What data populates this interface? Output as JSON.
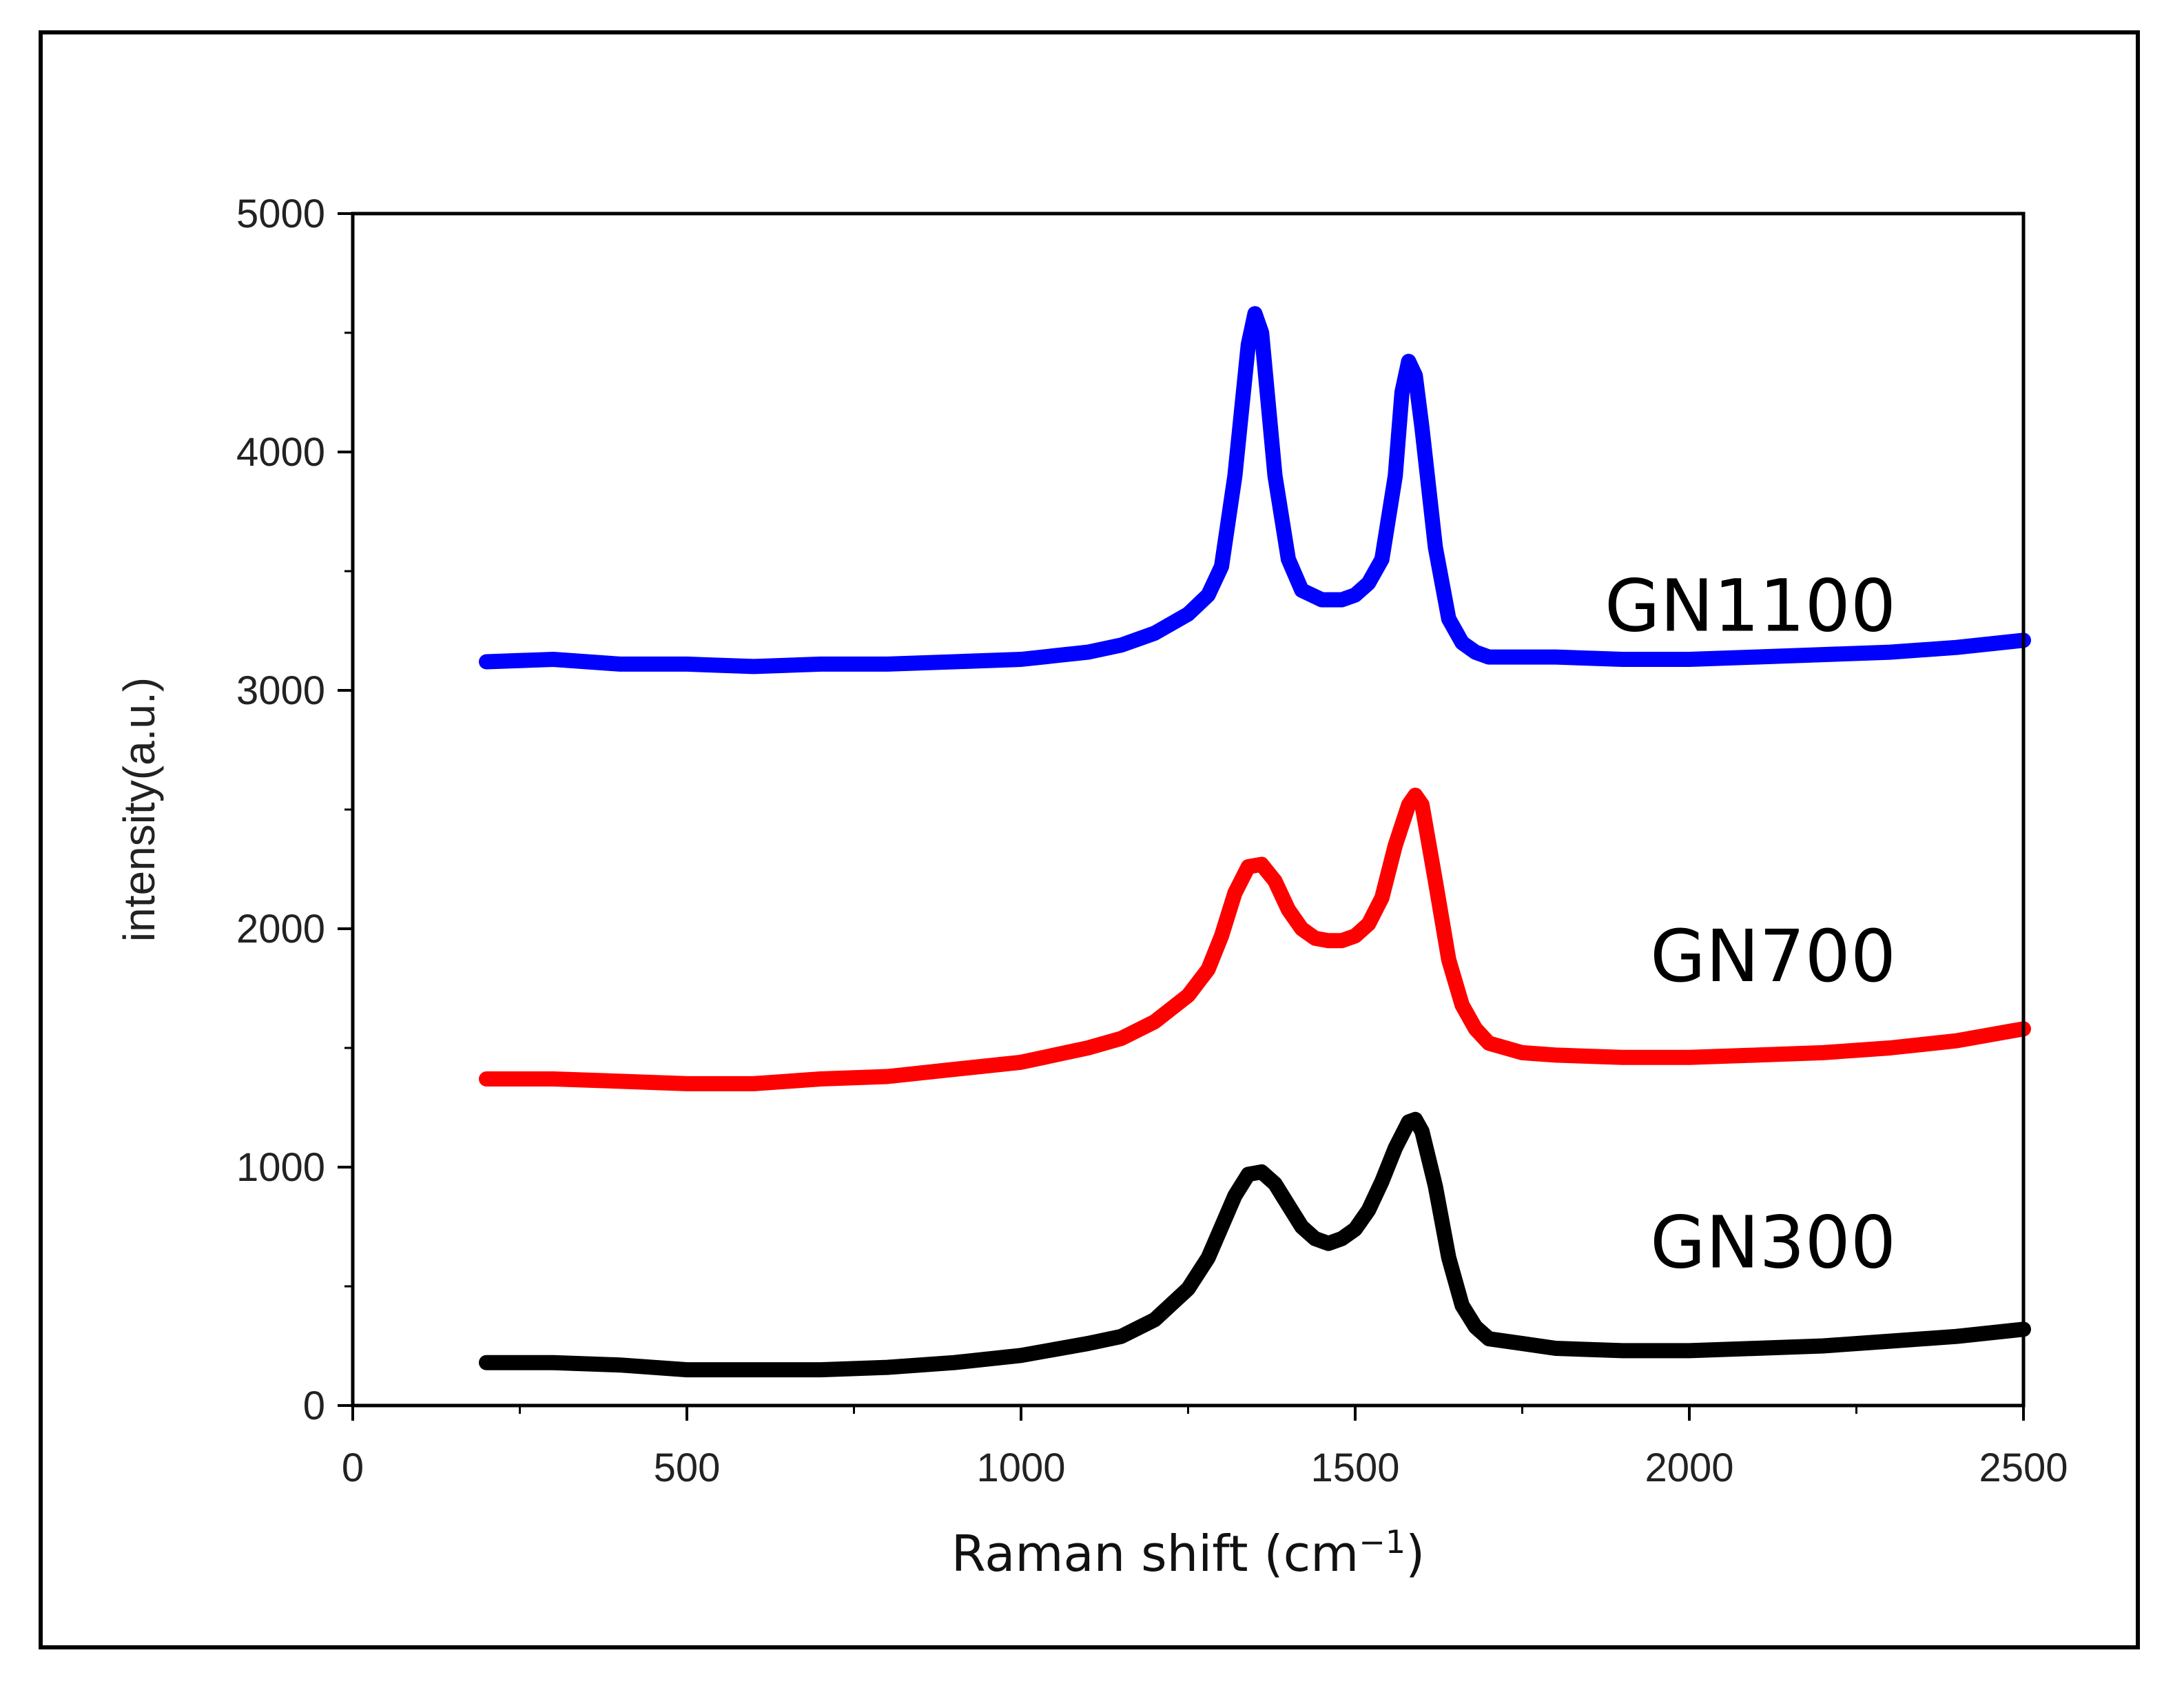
{
  "chart_data": {
    "type": "line",
    "title": "",
    "xlabel": "Raman shift (cm",
    "xlabel_sup": "−1",
    "xlabel_close": ")",
    "ylabel": "intensity(a.u.)",
    "xlim": [
      0,
      2500
    ],
    "ylim": [
      0,
      5000
    ],
    "xticks": [
      "0",
      "500",
      "1000",
      "1500",
      "2000",
      "2500"
    ],
    "yticks": [
      "0",
      "1000",
      "2000",
      "3000",
      "4000",
      "5000"
    ],
    "grid": false,
    "series": [
      {
        "name": "GN1100",
        "color": "#0000ff",
        "x": [
          200,
          300,
          400,
          500,
          600,
          700,
          800,
          900,
          1000,
          1100,
          1150,
          1200,
          1250,
          1280,
          1300,
          1320,
          1340,
          1350,
          1360,
          1380,
          1400,
          1420,
          1450,
          1480,
          1500,
          1520,
          1540,
          1560,
          1570,
          1580,
          1590,
          1600,
          1620,
          1640,
          1660,
          1680,
          1700,
          1750,
          1800,
          1900,
          2000,
          2100,
          2200,
          2300,
          2400,
          2500
        ],
        "y": [
          3120,
          3130,
          3110,
          3110,
          3100,
          3110,
          3110,
          3120,
          3130,
          3160,
          3190,
          3240,
          3320,
          3400,
          3520,
          3900,
          4450,
          4580,
          4500,
          3900,
          3550,
          3420,
          3380,
          3380,
          3400,
          3450,
          3550,
          3900,
          4250,
          4380,
          4320,
          4100,
          3600,
          3300,
          3200,
          3160,
          3140,
          3140,
          3140,
          3130,
          3130,
          3140,
          3150,
          3160,
          3180,
          3210
        ]
      },
      {
        "name": "GN700",
        "color": "#ff0000",
        "x": [
          200,
          300,
          400,
          500,
          600,
          700,
          800,
          900,
          1000,
          1100,
          1150,
          1200,
          1250,
          1280,
          1300,
          1320,
          1340,
          1360,
          1380,
          1400,
          1420,
          1440,
          1460,
          1480,
          1500,
          1520,
          1540,
          1560,
          1580,
          1590,
          1600,
          1620,
          1640,
          1660,
          1680,
          1700,
          1750,
          1800,
          1900,
          2000,
          2100,
          2200,
          2300,
          2400,
          2500
        ],
        "y": [
          1370,
          1370,
          1360,
          1350,
          1350,
          1370,
          1380,
          1410,
          1440,
          1500,
          1540,
          1610,
          1720,
          1830,
          1970,
          2150,
          2260,
          2270,
          2200,
          2080,
          2000,
          1960,
          1950,
          1950,
          1970,
          2020,
          2130,
          2350,
          2520,
          2560,
          2520,
          2200,
          1870,
          1680,
          1580,
          1520,
          1480,
          1470,
          1460,
          1460,
          1470,
          1480,
          1500,
          1530,
          1580
        ]
      },
      {
        "name": "GN300",
        "color": "#000000",
        "x": [
          200,
          300,
          400,
          500,
          600,
          700,
          800,
          900,
          1000,
          1100,
          1150,
          1200,
          1250,
          1280,
          1300,
          1320,
          1340,
          1360,
          1380,
          1400,
          1420,
          1440,
          1460,
          1480,
          1500,
          1520,
          1540,
          1560,
          1580,
          1590,
          1600,
          1620,
          1640,
          1660,
          1680,
          1700,
          1750,
          1800,
          1900,
          2000,
          2100,
          2200,
          2300,
          2400,
          2500
        ],
        "y": [
          180,
          180,
          170,
          150,
          150,
          150,
          160,
          180,
          210,
          260,
          290,
          360,
          490,
          620,
          750,
          880,
          970,
          980,
          930,
          840,
          750,
          700,
          680,
          700,
          740,
          820,
          940,
          1080,
          1190,
          1200,
          1150,
          920,
          620,
          420,
          330,
          280,
          260,
          240,
          230,
          230,
          240,
          250,
          270,
          290,
          320
        ]
      }
    ]
  }
}
